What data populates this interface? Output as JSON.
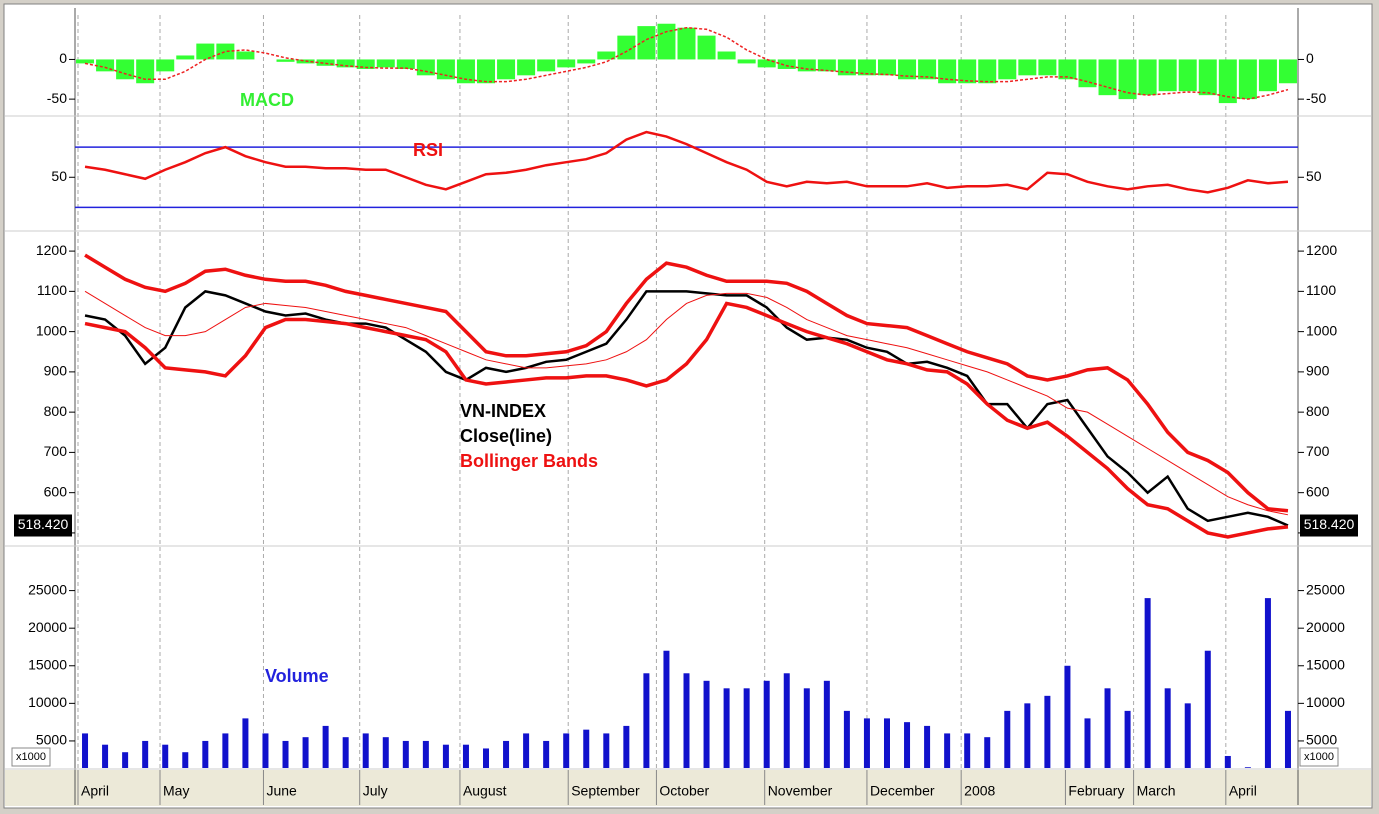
{
  "x_axis": {
    "xlim": [
      -0.5,
      60.5
    ],
    "xticks": [
      {
        "value": -0.35,
        "label": "April"
      },
      {
        "value": 3.74,
        "label": "May"
      },
      {
        "value": 8.9,
        "label": "June"
      },
      {
        "value": 13.7,
        "label": "July"
      },
      {
        "value": 18.7,
        "label": "August"
      },
      {
        "value": 24.1,
        "label": "September"
      },
      {
        "value": 28.5,
        "label": "October"
      },
      {
        "value": 33.9,
        "label": "November"
      },
      {
        "value": 39.0,
        "label": "December"
      },
      {
        "value": 43.7,
        "label": "2008"
      },
      {
        "value": 48.9,
        "label": "February"
      },
      {
        "value": 52.3,
        "label": "March"
      },
      {
        "value": 56.9,
        "label": "April"
      }
    ]
  },
  "chart_data": [
    {
      "type": "bar",
      "title": "MACD",
      "title_color": "#33ee33",
      "ylim": [
        -70,
        56
      ],
      "yticks": [
        0,
        -50
      ],
      "series": [
        {
          "type": "bar",
          "color": "#33ff33",
          "values": [
            -5,
            -15,
            -25,
            -30,
            -15,
            5,
            20,
            20,
            10,
            0,
            -3,
            -5,
            -8,
            -10,
            -12,
            -10,
            -12,
            -20,
            -25,
            -30,
            -30,
            -25,
            -20,
            -15,
            -10,
            -5,
            10,
            30,
            42,
            45,
            40,
            30,
            10,
            -5,
            -10,
            -12,
            -15,
            -15,
            -20,
            -20,
            -20,
            -25,
            -25,
            -30,
            -30,
            -30,
            -25,
            -20,
            -20,
            -25,
            -35,
            -45,
            -50,
            -45,
            -40,
            -40,
            -45,
            -55,
            -50,
            -40,
            -30
          ]
        },
        {
          "type": "line",
          "color": "#ee2222",
          "dashed": true,
          "values": [
            -5,
            -10,
            -18,
            -25,
            -25,
            -15,
            0,
            10,
            12,
            8,
            2,
            -2,
            -5,
            -8,
            -10,
            -11,
            -11,
            -15,
            -20,
            -25,
            -28,
            -28,
            -25,
            -20,
            -15,
            -10,
            -3,
            10,
            25,
            35,
            40,
            38,
            28,
            12,
            0,
            -8,
            -12,
            -14,
            -16,
            -18,
            -19,
            -21,
            -22,
            -25,
            -27,
            -28,
            -28,
            -25,
            -22,
            -22,
            -28,
            -35,
            -42,
            -45,
            -43,
            -41,
            -42,
            -47,
            -50,
            -45,
            -38
          ]
        }
      ]
    },
    {
      "type": "line",
      "title": "RSI",
      "title_color": "#ee1111",
      "ylim": [
        15,
        90
      ],
      "yticks": [
        50
      ],
      "levels": [
        70,
        30
      ],
      "level_color": "#2222dd",
      "series": [
        {
          "color": "#ee1111",
          "values": [
            57,
            55,
            52,
            49,
            55,
            60,
            66,
            70,
            64,
            60,
            57,
            57,
            56,
            56,
            55,
            55,
            50,
            45,
            42,
            47,
            52,
            53,
            55,
            58,
            60,
            62,
            66,
            75,
            80,
            77,
            72,
            66,
            60,
            55,
            47,
            44,
            47,
            46,
            47,
            44,
            44,
            44,
            46,
            43,
            44,
            44,
            45,
            42,
            53,
            52,
            47,
            44,
            42,
            44,
            45,
            42,
            40,
            43,
            48,
            46,
            47
          ]
        }
      ]
    },
    {
      "type": "line",
      "title": "VN-INDEX",
      "title_color": "#000000",
      "ylim": [
        470,
        1240
      ],
      "yticks": [
        500,
        600,
        700,
        800,
        900,
        1000,
        1100,
        1200
      ],
      "last_value": {
        "value": 518.42,
        "label": "518.420"
      },
      "series": [
        {
          "name": "Close(line)",
          "color": "#000000",
          "values": [
            1040,
            1030,
            990,
            920,
            960,
            1060,
            1100,
            1090,
            1070,
            1050,
            1040,
            1045,
            1030,
            1020,
            1020,
            1010,
            980,
            950,
            900,
            880,
            910,
            900,
            910,
            925,
            930,
            950,
            970,
            1030,
            1100,
            1100,
            1100,
            1095,
            1090,
            1090,
            1060,
            1010,
            980,
            985,
            980,
            960,
            950,
            920,
            925,
            910,
            890,
            820,
            820,
            760,
            820,
            830,
            760,
            690,
            650,
            600,
            640,
            560,
            530,
            540,
            550,
            540,
            518.42
          ]
        },
        {
          "name": "Bollinger Bands",
          "color": "#ee1111",
          "values": [
            1100,
            1070,
            1040,
            1010,
            990,
            990,
            1000,
            1030,
            1060,
            1070,
            1065,
            1060,
            1050,
            1040,
            1030,
            1020,
            1010,
            990,
            970,
            950,
            930,
            920,
            910,
            910,
            915,
            920,
            930,
            950,
            980,
            1030,
            1070,
            1090,
            1095,
            1095,
            1085,
            1060,
            1030,
            1010,
            990,
            980,
            970,
            960,
            945,
            930,
            915,
            900,
            880,
            860,
            840,
            810,
            800,
            770,
            740,
            710,
            680,
            650,
            620,
            590,
            570,
            555,
            545
          ],
          "upper": [
            1190,
            1160,
            1130,
            1110,
            1100,
            1120,
            1150,
            1155,
            1140,
            1130,
            1125,
            1125,
            1115,
            1100,
            1090,
            1080,
            1070,
            1060,
            1050,
            1000,
            950,
            940,
            940,
            945,
            950,
            965,
            1000,
            1070,
            1130,
            1170,
            1160,
            1140,
            1125,
            1125,
            1125,
            1120,
            1100,
            1070,
            1040,
            1020,
            1015,
            1010,
            990,
            970,
            950,
            935,
            920,
            890,
            880,
            890,
            905,
            910,
            880,
            820,
            750,
            700,
            680,
            650,
            600,
            560,
            555
          ],
          "lower": [
            1020,
            1010,
            1000,
            960,
            910,
            905,
            900,
            890,
            940,
            1010,
            1030,
            1030,
            1025,
            1020,
            1010,
            1000,
            990,
            980,
            950,
            880,
            870,
            875,
            880,
            885,
            885,
            890,
            890,
            880,
            865,
            880,
            920,
            980,
            1070,
            1060,
            1040,
            1020,
            1000,
            985,
            970,
            950,
            930,
            920,
            905,
            900,
            870,
            820,
            780,
            760,
            775,
            740,
            700,
            660,
            610,
            570,
            560,
            530,
            500,
            490,
            500,
            510,
            515
          ]
        }
      ]
    },
    {
      "type": "bar",
      "title": "Volume",
      "title_color": "#2222dd",
      "ylim": [
        1400,
        30400
      ],
      "yticks": [
        5000,
        10000,
        15000,
        20000,
        25000
      ],
      "unit_label": "x1000",
      "series": [
        {
          "color": "#1111cc",
          "values": [
            6000,
            4500,
            3500,
            5000,
            4500,
            3500,
            5000,
            6000,
            8000,
            6000,
            5000,
            5500,
            7000,
            5500,
            6000,
            5500,
            5000,
            5000,
            4500,
            4500,
            4000,
            5000,
            6000,
            5000,
            6000,
            6500,
            6000,
            7000,
            14000,
            17000,
            14000,
            13000,
            12000,
            12000,
            13000,
            14000,
            12000,
            13000,
            9000,
            8000,
            8000,
            7500,
            7000,
            6000,
            6000,
            5500,
            9000,
            10000,
            11000,
            15000,
            8000,
            12000,
            9000,
            24000,
            12000,
            10000,
            17000,
            3000,
            1500,
            24000,
            9000
          ]
        }
      ]
    }
  ]
}
